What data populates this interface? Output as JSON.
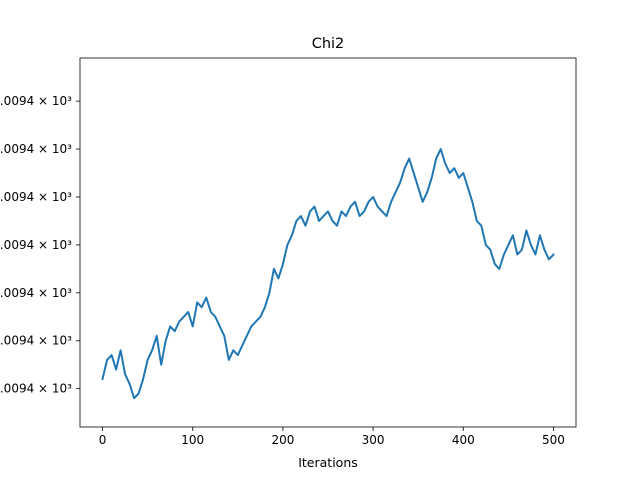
{
  "chart_data": {
    "type": "line",
    "title": "Chi2",
    "xlabel": "Iterations",
    "ylabel": "",
    "xlim": [
      -25,
      525
    ],
    "x_ticks": [
      0,
      100,
      200,
      300,
      400,
      500
    ],
    "x_tick_labels": [
      "0",
      "100",
      "200",
      "300",
      "400",
      "500"
    ],
    "ylim": [
      0.2,
      7.9
    ],
    "y_tick_values": [
      1,
      2,
      3,
      4,
      5,
      6,
      7
    ],
    "y_tick_labels": [
      "1.0094 × 10³",
      "1.0094 × 10³",
      "1.0094 × 10³",
      "1.0094 × 10³",
      "1.0094 × 10³",
      "1.0094 × 10³",
      "1.0094 × 10³"
    ],
    "y_tick_sup": "3",
    "grid": false,
    "line_color": "#1f77b4",
    "series": [
      {
        "x": [
          0,
          5,
          10,
          15,
          20,
          25,
          30,
          35,
          40,
          45,
          50,
          55,
          60,
          65,
          70,
          75,
          80,
          85,
          90,
          95,
          100,
          105,
          110,
          115,
          120,
          125,
          130,
          135,
          140,
          145,
          150,
          155,
          160,
          165,
          170,
          175,
          180,
          185,
          190,
          195,
          200,
          205,
          210,
          215,
          220,
          225,
          230,
          235,
          240,
          245,
          250,
          255,
          260,
          265,
          270,
          275,
          280,
          285,
          290,
          295,
          300,
          305,
          310,
          315,
          320,
          325,
          330,
          335,
          340,
          345,
          350,
          355,
          360,
          365,
          370,
          375,
          380,
          385,
          390,
          395,
          400,
          405,
          410,
          415,
          420,
          425,
          430,
          435,
          440,
          445,
          450,
          455,
          460,
          465,
          470,
          475,
          480,
          485,
          490,
          495,
          500
        ],
        "y": [
          1.2,
          1.6,
          1.7,
          1.4,
          1.8,
          1.3,
          1.1,
          0.8,
          0.9,
          1.2,
          1.6,
          1.8,
          2.1,
          1.5,
          2.0,
          2.3,
          2.2,
          2.4,
          2.5,
          2.6,
          2.3,
          2.8,
          2.7,
          2.9,
          2.6,
          2.5,
          2.3,
          2.1,
          1.6,
          1.8,
          1.7,
          1.9,
          2.1,
          2.3,
          2.4,
          2.5,
          2.7,
          3.0,
          3.5,
          3.3,
          3.6,
          4.0,
          4.2,
          4.5,
          4.6,
          4.4,
          4.7,
          4.8,
          4.5,
          4.6,
          4.7,
          4.5,
          4.4,
          4.7,
          4.6,
          4.8,
          4.9,
          4.6,
          4.7,
          4.9,
          5.0,
          4.8,
          4.7,
          4.6,
          4.9,
          5.1,
          5.3,
          5.6,
          5.8,
          5.5,
          5.2,
          4.9,
          5.1,
          5.4,
          5.8,
          6.0,
          5.7,
          5.5,
          5.6,
          5.4,
          5.5,
          5.2,
          4.9,
          4.5,
          4.4,
          4.0,
          3.9,
          3.6,
          3.5,
          3.8,
          4.0,
          4.2,
          3.8,
          3.9,
          4.3,
          4.0,
          3.8,
          4.2,
          3.9,
          3.7,
          3.8
        ]
      }
    ]
  }
}
